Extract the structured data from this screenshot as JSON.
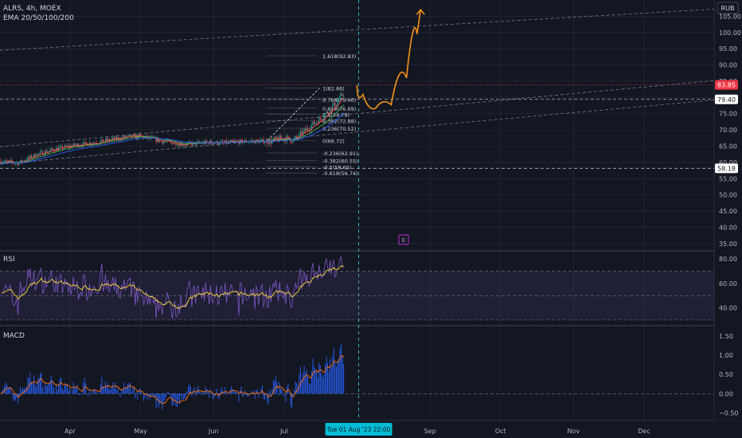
{
  "header": {
    "symbol_line": "ALRS, 4h, MOEX",
    "indicator_line": "EMA 20/50/100/200",
    "currency": "RUB"
  },
  "chart_data": [
    {
      "type": "candlestick",
      "title": "ALRS, 4h, MOEX",
      "ylim": [
        33,
        110
      ],
      "y_ticks": [
        "105.00",
        "100.00",
        "95.00",
        "90.00",
        "85.00",
        "80.00",
        "75.00",
        "70.00",
        "65.00",
        "60.00",
        "55.00",
        "50.00",
        "45.00",
        "40.00",
        "35.00"
      ],
      "price_badges": [
        {
          "text": "83.85",
          "value": 83.85,
          "color": "#f23645"
        },
        {
          "text": "79.40",
          "value": 79.4,
          "color": "#ffffff"
        },
        {
          "text": "58.18",
          "value": 58.18,
          "color": "#ffffff"
        }
      ],
      "fib_levels": [
        {
          "label": "1.618(92.83)",
          "value": 92.83
        },
        {
          "label": "1(82.86)",
          "value": 82.86
        },
        {
          "label": "0.786(79.40)",
          "value": 79.4
        },
        {
          "label": "0.618(76.69)",
          "value": 76.69
        },
        {
          "label": "0.5(74.79)",
          "value": 74.79
        },
        {
          "label": "0.382(72.88)",
          "value": 72.88
        },
        {
          "label": "0.236(70.52)",
          "value": 70.52
        },
        {
          "label": "0(66.72)",
          "value": 66.72
        },
        {
          "label": "-0.236(62.91)",
          "value": 62.91
        },
        {
          "label": "-0.382(60.55)",
          "value": 60.55
        },
        {
          "label": "-0.5(58.65)",
          "value": 58.65
        },
        {
          "label": "-0.618(56.74)",
          "value": 56.74
        }
      ],
      "price_path": [
        {
          "date": "2023-03-01",
          "value": 60.5
        },
        {
          "date": "2023-03-10",
          "value": 59.8
        },
        {
          "date": "2023-03-18",
          "value": 62.5
        },
        {
          "date": "2023-03-25",
          "value": 64.0
        },
        {
          "date": "2023-04-05",
          "value": 65.5
        },
        {
          "date": "2023-04-15",
          "value": 66.5
        },
        {
          "date": "2023-04-25",
          "value": 67.8
        },
        {
          "date": "2023-05-01",
          "value": 68.0
        },
        {
          "date": "2023-05-10",
          "value": 66.5
        },
        {
          "date": "2023-05-20",
          "value": 65.5
        },
        {
          "date": "2023-05-30",
          "value": 66.2
        },
        {
          "date": "2023-06-05",
          "value": 66.0
        },
        {
          "date": "2023-06-15",
          "value": 66.5
        },
        {
          "date": "2023-06-25",
          "value": 66.5
        },
        {
          "date": "2023-07-01",
          "value": 67.5
        },
        {
          "date": "2023-07-05",
          "value": 66.8
        },
        {
          "date": "2023-07-12",
          "value": 71.0
        },
        {
          "date": "2023-07-18",
          "value": 74.5
        },
        {
          "date": "2023-07-24",
          "value": 79.0
        },
        {
          "date": "2023-07-28",
          "value": 82.8
        },
        {
          "date": "2023-08-01",
          "value": 82.0
        }
      ],
      "projection": [
        {
          "date": "2023-08-01",
          "value": 83.8
        },
        {
          "date": "2023-08-06",
          "value": 78.0
        },
        {
          "date": "2023-08-12",
          "value": 75.5
        },
        {
          "date": "2023-08-19",
          "value": 80.0
        },
        {
          "date": "2023-08-25",
          "value": 92.0
        },
        {
          "date": "2023-08-28",
          "value": 107.0
        }
      ],
      "event_marker": "E"
    },
    {
      "type": "line",
      "title": "RSI",
      "ylim": [
        26,
        86
      ],
      "y_ticks": [
        "80.00",
        "60.00",
        "40.00"
      ],
      "bands": [
        70,
        50,
        30
      ]
    },
    {
      "type": "bar",
      "title": "MACD",
      "ylim": [
        -0.7,
        1.75
      ],
      "y_ticks": [
        "1.50",
        "1.00",
        "0.50",
        "0.00",
        "−0.50"
      ]
    }
  ],
  "x_axis": {
    "ticks": [
      "Apr",
      "May",
      "Jun",
      "Jul",
      "Sep",
      "Oct",
      "Nov",
      "Dec"
    ],
    "crosshair_label": "Tue 01 Aug '23   22:00"
  },
  "colors": {
    "background": "#131722",
    "grid": "#2a2e39",
    "axis_text": "#b2b5be",
    "candle_up": "#26a69a",
    "candle_down": "#ef5350",
    "ema20": "#ff5252",
    "ema50": "#4caf50",
    "ema100": "#2962ff",
    "projection": "#f7931a",
    "rsi_line": "#7e57c2",
    "rsi_signal": "#fdd835",
    "macd_hist": "#2962ff",
    "macd_signal": "#ff6d00",
    "crosshair_badge": "#00bcd4",
    "event_badge": "#9c27b0"
  }
}
